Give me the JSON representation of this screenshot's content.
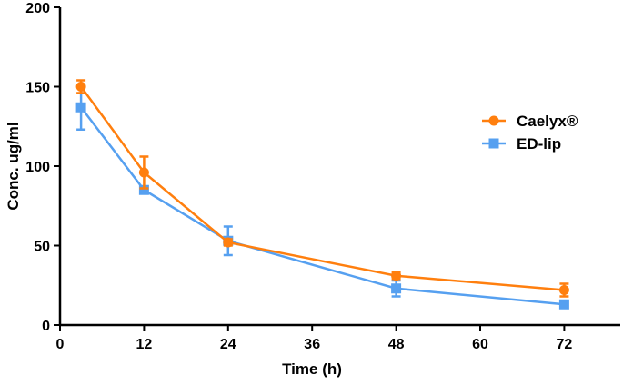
{
  "chart_data": {
    "type": "line",
    "title": "",
    "xlabel": "Time (h)",
    "ylabel": "Conc. ug/ml",
    "xlim": [
      0,
      80
    ],
    "ylim": [
      0,
      200
    ],
    "xticks": [
      0,
      12,
      24,
      36,
      48,
      60,
      72
    ],
    "yticks": [
      0,
      50,
      100,
      150,
      200
    ],
    "grid": false,
    "legend_position": "right",
    "x": [
      3,
      12,
      24,
      48,
      72
    ],
    "series": [
      {
        "name": "Caelyx®",
        "color": "#ff7f0e",
        "marker": "circle",
        "values": [
          150,
          96,
          52,
          31,
          22
        ],
        "errors": [
          4,
          10,
          2,
          2,
          4
        ]
      },
      {
        "name": "ED-lip",
        "color": "#56a0f0",
        "marker": "square",
        "values": [
          137,
          85,
          53,
          23,
          13
        ],
        "errors": [
          14,
          2,
          9,
          5,
          2
        ]
      }
    ]
  }
}
